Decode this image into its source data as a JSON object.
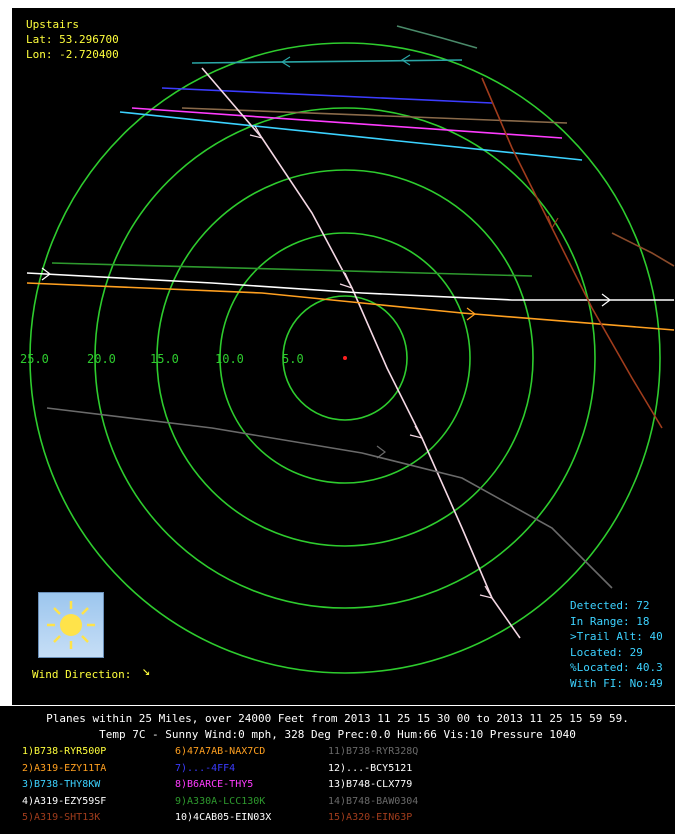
{
  "location": {
    "name": "Upstairs",
    "lat_label": "Lat: 53.296700",
    "lon_label": "Lon: -2.720400"
  },
  "range_labels": [
    "25.0",
    "20.0",
    "15.0",
    "10.0",
    "5.0"
  ],
  "stats": {
    "detected": "Detected:  72",
    "in_range": "In Range:  18",
    "trail_alt": ">Trail Alt: 40",
    "located": "Located:  29",
    "pct_located": "%Located:  40.3",
    "with_fi": "With FI: No:49"
  },
  "wind": {
    "label": "Wind Direction:",
    "arrow": "↘"
  },
  "summary": {
    "line1": "Planes within 25 Miles, over 24000 Feet from 2013 11 25  15 30 00 to 2013 11 25  15 59 59.",
    "line2": "Temp 7C - Sunny Wind:0 mph, 328 Deg Prec:0.0 Hum:66 Vis:10 Pressure 1040"
  },
  "flights": [
    {
      "label": "1)B738-RYR500P",
      "color": "#ffff3c"
    },
    {
      "label": "2)A319-EZY11TA",
      "color": "#ffa020"
    },
    {
      "label": "3)B738-THY8KW",
      "color": "#3cd2ff"
    },
    {
      "label": "4)A319-EZY59SF",
      "color": "#ffffff"
    },
    {
      "label": "5)A319-SHT13K",
      "color": "#a03c1c"
    },
    {
      "label": "6)47A7AB-NAX7CD",
      "color": "#ffa020"
    },
    {
      "label": "7)...-4FF4",
      "color": "#3c3cff"
    },
    {
      "label": "8)B6ARCE-THY5",
      "color": "#ff3cff"
    },
    {
      "label": "9)A330A-LCC130K",
      "color": "#2e9a2e"
    },
    {
      "label": "10)4CAB05-EIN03X",
      "color": "#ffffff"
    },
    {
      "label": "11)B738-RYR328Q",
      "color": "#6a6a6a"
    },
    {
      "label": "12)...-BCY5121",
      "color": "#ffffff"
    },
    {
      "label": "13)B748-CLX779",
      "color": "#ffffff"
    },
    {
      "label": "14)B748-BAW0304",
      "color": "#6a6a6a"
    },
    {
      "label": "15)A320-EIN63P",
      "color": "#a03c1c"
    }
  ],
  "colors": {
    "ring": "#2ecc2e",
    "panel_bg": "#000000",
    "center_marker": "#ff2020"
  }
}
